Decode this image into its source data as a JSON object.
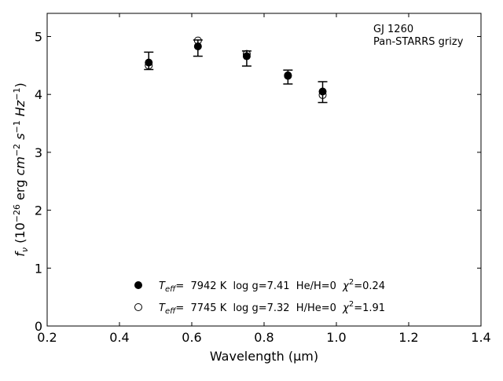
{
  "chart_data": {
    "type": "scatter",
    "title": "",
    "xlabel": "Wavelength (μm)",
    "ylabel": "f_ν (10^−26 erg cm^−2 s^−1 Hz^−1)",
    "xlim": [
      0.2,
      1.4
    ],
    "ylim": [
      0,
      5.4
    ],
    "xticks": [
      0.2,
      0.4,
      0.6,
      0.8,
      1.0,
      1.2,
      1.4
    ],
    "xtick_labels": [
      "0.2",
      "0.4",
      "0.6",
      "0.8",
      "1.0",
      "1.2",
      "1.4"
    ],
    "yticks": [
      0,
      1,
      2,
      3,
      4,
      5
    ],
    "ytick_labels": [
      "0",
      "1",
      "2",
      "3",
      "4",
      "5"
    ],
    "grid": false,
    "annotation": {
      "line1": "GJ 1260",
      "line2": "Pan-STARRS grizy"
    },
    "observed": {
      "x": [
        0.481,
        0.617,
        0.752,
        0.866,
        0.962
      ],
      "y": [
        4.58,
        4.8,
        4.62,
        4.3,
        4.04
      ],
      "yerr": [
        0.15,
        0.14,
        0.13,
        0.12,
        0.18
      ]
    },
    "series": [
      {
        "marker": "filled-circle",
        "x": [
          0.481,
          0.617,
          0.752,
          0.866,
          0.962
        ],
        "y": [
          4.55,
          4.83,
          4.66,
          4.33,
          4.05
        ]
      },
      {
        "marker": "open-circle",
        "x": [
          0.481,
          0.617,
          0.752,
          0.866,
          0.962
        ],
        "y": [
          4.5,
          4.93,
          4.7,
          4.32,
          3.99
        ]
      }
    ],
    "legend": {
      "placement": "lower-center",
      "entries": [
        {
          "marker": "filled-circle",
          "teff_sym": "T",
          "teff_sub": "eff",
          "text_a": "=  7942 K  log g=7.41  He/H=0  ",
          "chi_sym": "χ",
          "chi_sup": "2",
          "text_b": "=0.24"
        },
        {
          "marker": "open-circle",
          "teff_sym": "T",
          "teff_sub": "eff",
          "text_a": "=  7745 K  log g=7.32  H/He=0  ",
          "chi_sym": "χ",
          "chi_sup": "2",
          "text_b": "=1.91"
        }
      ]
    },
    "colors": {
      "marker": "#000000",
      "axes": "#000000",
      "background": "#ffffff"
    }
  }
}
